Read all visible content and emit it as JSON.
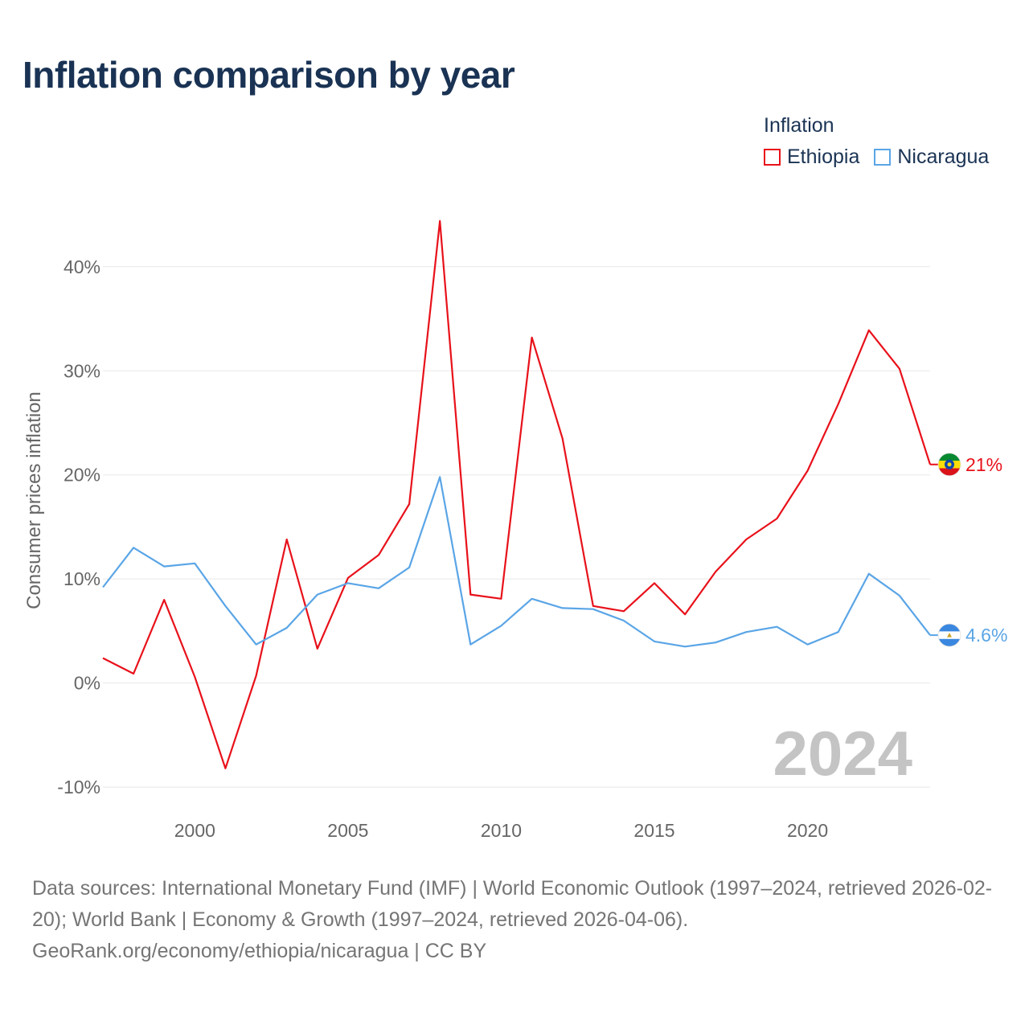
{
  "title": "Inflation comparison by year",
  "legend": {
    "title": "Inflation",
    "items": [
      {
        "name": "Ethiopia",
        "color": "#e8111a"
      },
      {
        "name": "Nicaragua",
        "color": "#5aa5e6"
      }
    ]
  },
  "chart_data": {
    "type": "line",
    "title": "Inflation comparison by year",
    "xlabel": "",
    "ylabel": "Consumer prices inflation",
    "xlim": [
      1997,
      2024
    ],
    "ylim": [
      -12,
      44
    ],
    "yticks": [
      -10,
      0,
      10,
      20,
      30,
      40
    ],
    "ytick_labels": [
      "-10%",
      "0%",
      "10%",
      "20%",
      "30%",
      "40%"
    ],
    "xticks": [
      2000,
      2005,
      2010,
      2015,
      2020
    ],
    "xtick_labels": [
      "2000",
      "2005",
      "2010",
      "2015",
      "2020"
    ],
    "x": [
      1997,
      1998,
      1999,
      2000,
      2001,
      2002,
      2003,
      2004,
      2005,
      2006,
      2007,
      2008,
      2009,
      2010,
      2011,
      2012,
      2013,
      2014,
      2015,
      2016,
      2017,
      2018,
      2019,
      2020,
      2021,
      2022,
      2023,
      2024
    ],
    "series": [
      {
        "name": "Ethiopia",
        "color": "#e8111a",
        "values": [
          2.4,
          0.9,
          8.0,
          0.6,
          -8.2,
          0.7,
          13.8,
          3.3,
          10.1,
          12.3,
          17.2,
          44.4,
          8.5,
          8.1,
          33.2,
          23.5,
          7.4,
          6.9,
          9.6,
          6.6,
          10.7,
          13.8,
          15.8,
          20.4,
          26.8,
          33.9,
          30.2,
          21.0
        ],
        "end_label": "21%"
      },
      {
        "name": "Nicaragua",
        "color": "#5aa5e6",
        "values": [
          9.2,
          13.0,
          11.2,
          11.5,
          7.4,
          3.7,
          5.3,
          8.5,
          9.6,
          9.1,
          11.1,
          19.8,
          3.7,
          5.5,
          8.1,
          7.2,
          7.1,
          6.0,
          4.0,
          3.5,
          3.9,
          4.9,
          5.4,
          3.7,
          4.9,
          10.5,
          8.4,
          4.6
        ],
        "end_label": "4.6%"
      }
    ],
    "year_watermark": "2024",
    "grid": true
  },
  "footer": {
    "sources": "Data sources: International Monetary Fund (IMF) | World Economic Outlook (1997–2024, retrieved 2026-02-20); World Bank | Economy & Growth (1997–2024, retrieved 2026-04-06).",
    "credit": "GeoRank.org/economy/ethiopia/nicaragua | CC BY"
  }
}
